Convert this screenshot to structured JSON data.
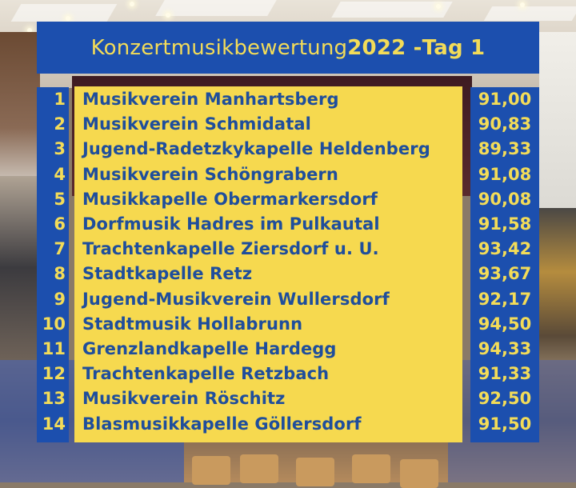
{
  "title": {
    "text": "Konzertmusikbewertung",
    "year": "2022 -",
    "day": "Tag 1"
  },
  "colors": {
    "banner_blue": "#1c4fae",
    "panel_yellow": "#f6d94f",
    "title_yellow": "#f3dc58",
    "name_blue": "#1f4e9c"
  },
  "results": [
    {
      "rank": "1",
      "name": "Musikverein Manhartsberg",
      "score": "91,00"
    },
    {
      "rank": "2",
      "name": "Musikverein Schmidatal",
      "score": "90,83"
    },
    {
      "rank": "3",
      "name": "Jugend-Radetzkykapelle Heldenberg",
      "score": "89,33"
    },
    {
      "rank": "4",
      "name": "Musikverein Schöngrabern",
      "score": "91,08"
    },
    {
      "rank": "5",
      "name": "Musikkapelle Obermarkersdorf",
      "score": "90,08"
    },
    {
      "rank": "6",
      "name": "Dorfmusik Hadres im Pulkautal",
      "score": "91,58"
    },
    {
      "rank": "7",
      "name": "Trachtenkapelle Ziersdorf u. U.",
      "score": "93,42"
    },
    {
      "rank": "8",
      "name": "Stadtkapelle Retz",
      "score": "93,67"
    },
    {
      "rank": "9",
      "name": "Jugend-Musikverein Wullersdorf",
      "score": "92,17"
    },
    {
      "rank": "10",
      "name": "Stadtmusik Hollabrunn",
      "score": "94,50"
    },
    {
      "rank": "11",
      "name": "Grenzlandkapelle Hardegg",
      "score": "94,33"
    },
    {
      "rank": "12",
      "name": "Trachtenkapelle Retzbach",
      "score": "91,33"
    },
    {
      "rank": "13",
      "name": "Musikverein Röschitz",
      "score": "92,50"
    },
    {
      "rank": "14",
      "name": "Blasmusikkapelle Göllersdorf",
      "score": "91,50"
    }
  ]
}
